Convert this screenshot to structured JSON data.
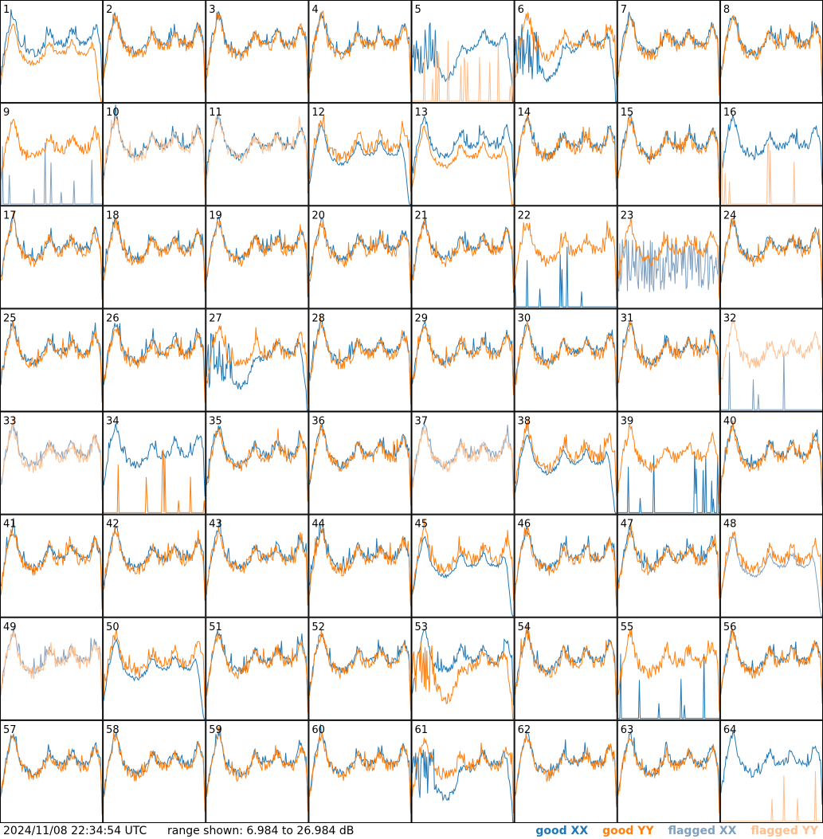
{
  "timestamp": "2024/11/08 22:34:54 UTC",
  "range_text": "range shown: 6.984 to 26.984 dB",
  "legend": [
    {
      "label": "good XX",
      "color": "#1f77b4"
    },
    {
      "label": "good YY",
      "color": "#ff7f0e"
    },
    {
      "label": "flagged XX",
      "color": "#7f9fbf"
    },
    {
      "label": "flagged YY",
      "color": "#ffbf8f"
    }
  ],
  "chart_data": {
    "type": "line",
    "ylim": [
      6.984,
      26.984
    ],
    "grid": {
      "rows": 8,
      "cols": 8
    },
    "panels": [
      {
        "label": "1",
        "xx": "good",
        "yy": "good",
        "yy_shape": "drop"
      },
      {
        "label": "2",
        "xx": "good",
        "yy": "good"
      },
      {
        "label": "3",
        "xx": "good",
        "yy": "good"
      },
      {
        "label": "4",
        "xx": "good",
        "yy": "good"
      },
      {
        "label": "5",
        "xx": "good",
        "yy": "flagged",
        "xx_shape": "dip",
        "yy_shape": "spikes"
      },
      {
        "label": "6",
        "xx": "good",
        "yy": "good",
        "xx_shape": "dip"
      },
      {
        "label": "7",
        "xx": "good",
        "yy": "good"
      },
      {
        "label": "8",
        "xx": "good",
        "yy": "good"
      },
      {
        "label": "9",
        "xx": "flagged",
        "yy": "good",
        "xx_shape": "spikes"
      },
      {
        "label": "10",
        "xx": "good",
        "yy": "flagged"
      },
      {
        "label": "11",
        "xx": "good",
        "yy": "flagged"
      },
      {
        "label": "12",
        "xx": "good",
        "yy": "good",
        "xx_shape": "drop"
      },
      {
        "label": "13",
        "xx": "good",
        "yy": "good",
        "yy_shape": "drop"
      },
      {
        "label": "14",
        "xx": "good",
        "yy": "good"
      },
      {
        "label": "15",
        "xx": "good",
        "yy": "good"
      },
      {
        "label": "16",
        "xx": "good",
        "yy": "flagged",
        "yy_shape": "spikes"
      },
      {
        "label": "17",
        "xx": "good",
        "yy": "good"
      },
      {
        "label": "18",
        "xx": "good",
        "yy": "good"
      },
      {
        "label": "19",
        "xx": "good",
        "yy": "good"
      },
      {
        "label": "20",
        "xx": "good",
        "yy": "good"
      },
      {
        "label": "21",
        "xx": "good",
        "yy": "good"
      },
      {
        "label": "22",
        "xx": "good",
        "yy": "good",
        "xx_shape": "spikes"
      },
      {
        "label": "23",
        "xx": "flagged",
        "yy": "good",
        "xx_shape": "noise"
      },
      {
        "label": "24",
        "xx": "good",
        "yy": "good"
      },
      {
        "label": "25",
        "xx": "good",
        "yy": "good"
      },
      {
        "label": "26",
        "xx": "good",
        "yy": "good"
      },
      {
        "label": "27",
        "xx": "good",
        "yy": "good",
        "xx_shape": "dip"
      },
      {
        "label": "28",
        "xx": "good",
        "yy": "good"
      },
      {
        "label": "29",
        "xx": "good",
        "yy": "good"
      },
      {
        "label": "30",
        "xx": "good",
        "yy": "good"
      },
      {
        "label": "31",
        "xx": "good",
        "yy": "good"
      },
      {
        "label": "32",
        "xx": "flagged",
        "yy": "flagged",
        "xx_shape": "spikes"
      },
      {
        "label": "33",
        "xx": "flagged",
        "yy": "flagged"
      },
      {
        "label": "34",
        "xx": "good",
        "yy": "good",
        "yy_shape": "spikes"
      },
      {
        "label": "35",
        "xx": "good",
        "yy": "good"
      },
      {
        "label": "36",
        "xx": "good",
        "yy": "good"
      },
      {
        "label": "37",
        "xx": "flagged",
        "yy": "flagged"
      },
      {
        "label": "38",
        "xx": "good",
        "yy": "good",
        "xx_shape": "drop"
      },
      {
        "label": "39",
        "xx": "good",
        "yy": "good",
        "xx_shape": "spikes"
      },
      {
        "label": "40",
        "xx": "good",
        "yy": "good"
      },
      {
        "label": "41",
        "xx": "good",
        "yy": "good"
      },
      {
        "label": "42",
        "xx": "good",
        "yy": "good"
      },
      {
        "label": "43",
        "xx": "good",
        "yy": "good"
      },
      {
        "label": "44",
        "xx": "good",
        "yy": "good"
      },
      {
        "label": "45",
        "xx": "good",
        "yy": "good",
        "xx_shape": "drop"
      },
      {
        "label": "46",
        "xx": "good",
        "yy": "good"
      },
      {
        "label": "47",
        "xx": "good",
        "yy": "good"
      },
      {
        "label": "48",
        "xx": "flagged",
        "yy": "good",
        "xx_shape": "drop"
      },
      {
        "label": "49",
        "xx": "flagged",
        "yy": "flagged"
      },
      {
        "label": "50",
        "xx": "good",
        "yy": "good",
        "xx_shape": "drop"
      },
      {
        "label": "51",
        "xx": "good",
        "yy": "good"
      },
      {
        "label": "52",
        "xx": "good",
        "yy": "good"
      },
      {
        "label": "53",
        "xx": "good",
        "yy": "good",
        "yy_shape": "dip"
      },
      {
        "label": "54",
        "xx": "good",
        "yy": "good"
      },
      {
        "label": "55",
        "xx": "good",
        "yy": "good",
        "xx_shape": "spikes"
      },
      {
        "label": "56",
        "xx": "good",
        "yy": "good"
      },
      {
        "label": "57",
        "xx": "good",
        "yy": "good"
      },
      {
        "label": "58",
        "xx": "good",
        "yy": "good"
      },
      {
        "label": "59",
        "xx": "good",
        "yy": "good"
      },
      {
        "label": "60",
        "xx": "good",
        "yy": "good"
      },
      {
        "label": "61",
        "xx": "good",
        "yy": "good",
        "xx_shape": "dip"
      },
      {
        "label": "62",
        "xx": "good",
        "yy": "good"
      },
      {
        "label": "63",
        "xx": "good",
        "yy": "good"
      },
      {
        "label": "64",
        "xx": "good",
        "yy": "flagged",
        "yy_shape": "spikes"
      }
    ]
  }
}
